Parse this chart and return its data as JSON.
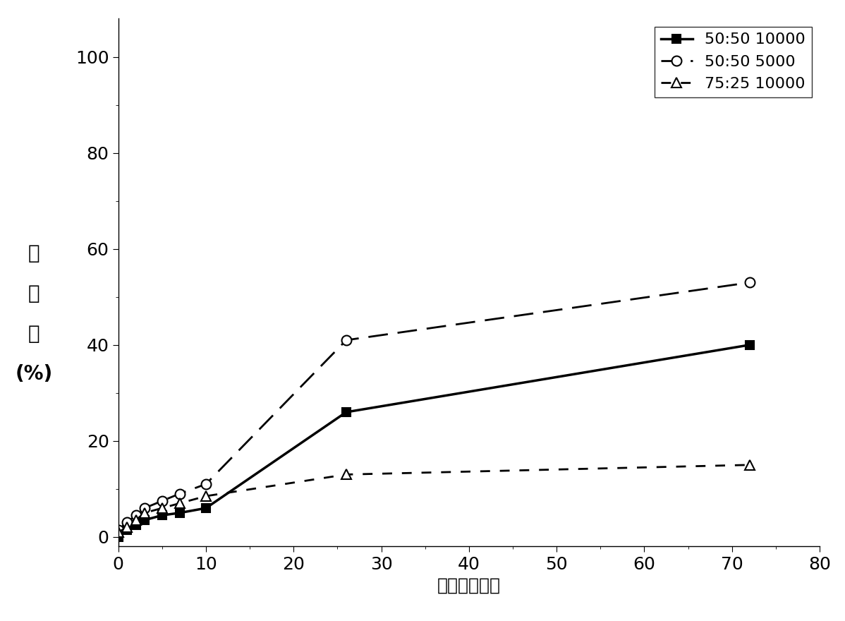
{
  "series": [
    {
      "label": "50:50 10000",
      "x": [
        0,
        1,
        2,
        3,
        5,
        7,
        10,
        26,
        72
      ],
      "y": [
        0,
        1.5,
        2.5,
        3.5,
        4.5,
        5.0,
        6.0,
        26.0,
        40.0
      ],
      "color": "#000000",
      "linestyle": "-",
      "linewidth": 2.5,
      "marker": "s",
      "markersize": 9,
      "markerfacecolor": "#000000",
      "dashes": null
    },
    {
      "label": "50:50 5000",
      "x": [
        0,
        1,
        2,
        3,
        5,
        7,
        10,
        26,
        72
      ],
      "y": [
        1.5,
        3.0,
        4.5,
        6.0,
        7.5,
        9.0,
        11.0,
        41.0,
        53.0
      ],
      "color": "#000000",
      "linestyle": "--",
      "linewidth": 2.0,
      "marker": "o",
      "markersize": 10,
      "markerfacecolor": "#ffffff",
      "dashes": [
        10,
        5
      ]
    },
    {
      "label": "75:25 10000",
      "x": [
        0,
        1,
        2,
        3,
        5,
        7,
        10,
        26,
        72
      ],
      "y": [
        1.0,
        2.0,
        3.5,
        5.0,
        6.0,
        7.0,
        8.5,
        13.0,
        15.0
      ],
      "color": "#000000",
      "linestyle": "--",
      "linewidth": 2.0,
      "marker": "^",
      "markersize": 10,
      "markerfacecolor": "#ffffff",
      "dashes": [
        5,
        5
      ]
    }
  ],
  "xlim": [
    0,
    80
  ],
  "ylim": [
    -2,
    108
  ],
  "xticks": [
    0,
    10,
    20,
    30,
    40,
    50,
    60,
    70,
    80
  ],
  "yticks": [
    0,
    20,
    40,
    60,
    80,
    100
  ],
  "xlabel": "时间（小时）",
  "ylabel_lines": [
    "释",
    "放",
    "率",
    "(%)"
  ],
  "background_color": "#ffffff",
  "legend_loc": "upper right",
  "axis_fontsize": 18,
  "tick_fontsize": 18,
  "legend_fontsize": 16,
  "ylabel_fontsize": 20
}
